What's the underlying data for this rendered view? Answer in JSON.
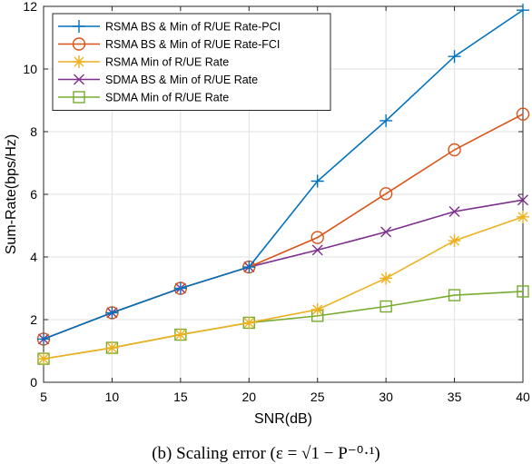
{
  "chart_data": {
    "type": "line",
    "xlabel": "SNR(dB)",
    "ylabel": "Sum-Rate(bps/Hz)",
    "xlim": [
      5,
      40
    ],
    "ylim": [
      0,
      12
    ],
    "xticks": [
      5,
      10,
      15,
      20,
      25,
      30,
      35,
      40
    ],
    "yticks": [
      0,
      2,
      4,
      6,
      8,
      10,
      12
    ],
    "grid": true,
    "legend_position": "top-left",
    "x": [
      5,
      10,
      15,
      20,
      25,
      30,
      35,
      40
    ],
    "series": [
      {
        "name": "RSMA BS & Min of R/UE Rate-PCI",
        "color": "#0072BD",
        "marker": "plus",
        "values": [
          1.38,
          2.22,
          3.0,
          3.68,
          6.42,
          8.35,
          10.4,
          11.88
        ]
      },
      {
        "name": "RSMA BS & Min of R/UE Rate-FCI",
        "color": "#D95319",
        "marker": "circle",
        "values": [
          1.38,
          2.22,
          3.0,
          3.68,
          4.62,
          6.02,
          7.42,
          8.56
        ]
      },
      {
        "name": "RSMA Min of R/UE Rate",
        "color": "#EDB120",
        "marker": "asterisk",
        "values": [
          0.75,
          1.1,
          1.52,
          1.9,
          2.32,
          3.32,
          4.52,
          5.28
        ]
      },
      {
        "name": "SDMA BS & Min of R/UE Rate",
        "color": "#7E2F8E",
        "marker": "x",
        "values": [
          1.38,
          2.22,
          3.0,
          3.68,
          4.22,
          4.8,
          5.45,
          5.82
        ]
      },
      {
        "name": "SDMA Min of R/UE Rate",
        "color": "#77AC30",
        "marker": "square",
        "values": [
          0.75,
          1.1,
          1.52,
          1.9,
          2.12,
          2.42,
          2.78,
          2.9
        ]
      }
    ]
  },
  "caption": "(b) Scaling error (ε = √1 − P⁻⁰·¹)"
}
